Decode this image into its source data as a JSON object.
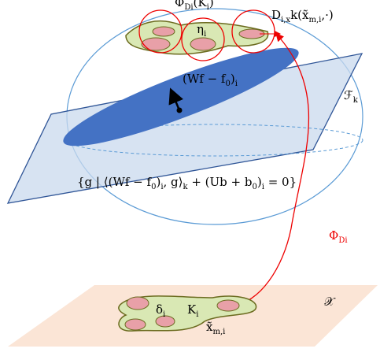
{
  "labels": {
    "phi_k": [
      "Φ",
      "D",
      "i",
      "(K",
      "i",
      ")"
    ],
    "deriv": [
      "D",
      "i,x",
      "k(x̃",
      "m,i",
      ",·)"
    ],
    "eta": [
      "η",
      "i"
    ],
    "normal": [
      "(Wf − f",
      "0",
      ")",
      "i"
    ],
    "fk": [
      "ℱ",
      "k"
    ],
    "hyperplane": [
      "{g | ⟨(Wf − f",
      "0",
      ")",
      "i",
      ", g⟩",
      "k",
      " + (Ub + b",
      "0",
      ")",
      "i",
      " = 0}"
    ],
    "map": [
      "Φ",
      "D",
      "i"
    ],
    "x": [
      "𝒳"
    ],
    "delta": [
      "δ",
      "i"
    ],
    "k": [
      "K",
      "i"
    ],
    "xt": [
      "x̃",
      "m,i"
    ]
  }
}
